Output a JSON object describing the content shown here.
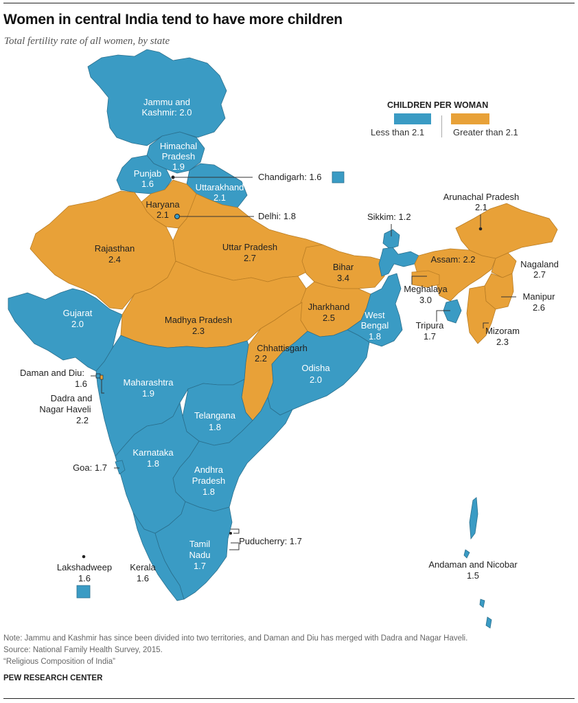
{
  "title": "Women in central India tend to have more children",
  "subtitle": "Total fertility rate of all women, by state",
  "legend": {
    "title": "CHILDREN PER WOMAN",
    "less_label": "Less than 2.1",
    "greater_label": "Greater than 2.1",
    "less_color": "#3a9bc4",
    "greater_color": "#e8a138"
  },
  "states": {
    "jammu_kashmir": {
      "name_1": "Jammu and",
      "name_2": "Kashmir: 2.0"
    },
    "himachal": {
      "name_1": "Himachal",
      "name_2": "Pradesh",
      "value": "1.9"
    },
    "punjab": {
      "name": "Punjab",
      "value": "1.6"
    },
    "uttarakhand": {
      "name": "Uttarakhand",
      "value": "2.1"
    },
    "chandigarh": {
      "label": "Chandigarh: 1.6"
    },
    "haryana": {
      "name": "Haryana",
      "value": "2.1"
    },
    "delhi": {
      "label": "Delhi: 1.8"
    },
    "rajasthan": {
      "name": "Rajasthan",
      "value": "2.4"
    },
    "uttar_pradesh": {
      "name": "Uttar Pradesh",
      "value": "2.7"
    },
    "bihar": {
      "name": "Bihar",
      "value": "3.4"
    },
    "sikkim": {
      "label": "Sikkim: 1.2"
    },
    "arunachal": {
      "name": "Arunachal Pradesh",
      "value": "2.1"
    },
    "assam": {
      "label": "Assam: 2.2"
    },
    "nagaland": {
      "name": "Nagaland",
      "value": "2.7"
    },
    "meghalaya": {
      "name": "Meghalaya",
      "value": "3.0"
    },
    "manipur": {
      "name": "Manipur",
      "value": "2.6"
    },
    "tripura": {
      "name": "Tripura",
      "value": "1.7"
    },
    "mizoram": {
      "name": "Mizoram",
      "value": "2.3"
    },
    "gujarat": {
      "name": "Gujarat",
      "value": "2.0"
    },
    "madhya_pradesh": {
      "name": "Madhya Pradesh",
      "value": "2.3"
    },
    "jharkhand": {
      "name": "Jharkhand",
      "value": "2.5"
    },
    "west_bengal": {
      "name_1": "West",
      "name_2": "Bengal",
      "value": "1.8"
    },
    "chhattisgarh": {
      "name": "Chhattisgarh",
      "value": "2.2"
    },
    "odisha": {
      "name": "Odisha",
      "value": "2.0"
    },
    "daman_diu": {
      "label": "Daman and Diu:",
      "value": "1.6"
    },
    "dadra": {
      "name_1": "Dadra and",
      "name_2": "Nagar Haveli",
      "value": "2.2"
    },
    "maharashtra": {
      "name": "Maharashtra",
      "value": "1.9"
    },
    "telangana": {
      "name": "Telangana",
      "value": "1.8"
    },
    "karnataka": {
      "name": "Karnataka",
      "value": "1.8"
    },
    "goa": {
      "label": "Goa: 1.7"
    },
    "andhra": {
      "name_1": "Andhra",
      "name_2": "Pradesh",
      "value": "1.8"
    },
    "puducherry": {
      "label": "Puducherry: 1.7"
    },
    "tamil_nadu": {
      "name_1": "Tamil",
      "name_2": "Nadu",
      "value": "1.7"
    },
    "kerala": {
      "name": "Kerala",
      "value": "1.6"
    },
    "lakshadweep": {
      "name": "Lakshadweep",
      "value": "1.6"
    },
    "andaman": {
      "name": "Andaman and Nicobar",
      "value": "1.5"
    }
  },
  "notes": {
    "note": "Note: Jammu and Kashmir has since been divided into two territories, and Daman and Diu has merged with Dadra and Nagar Haveli.",
    "source": "Source: National Family Health Survey, 2015.",
    "report": "“Religious Composition of India”"
  },
  "brand": "PEW RESEARCH CENTER"
}
